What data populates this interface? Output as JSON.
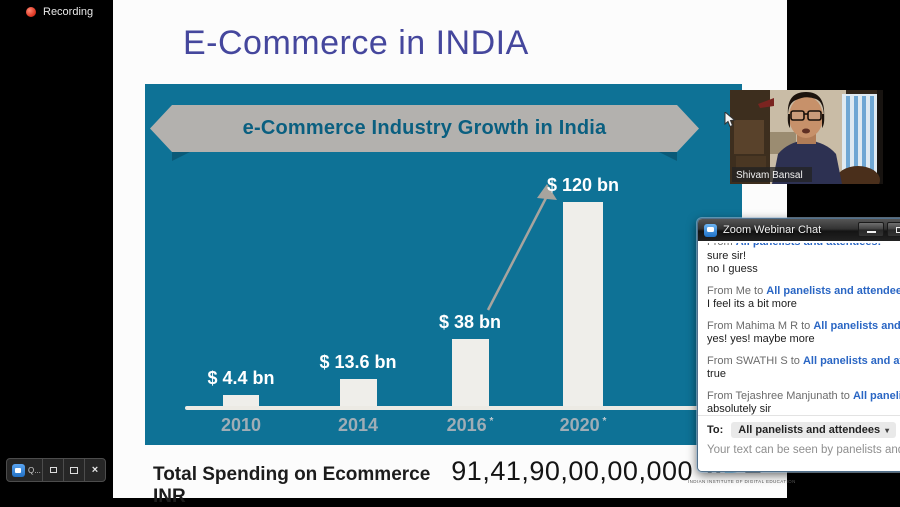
{
  "screen": {
    "recording_label": "Recording"
  },
  "slide": {
    "title": "E-Commerce in INDIA",
    "footer_label": "Total Spending on Ecommerce INR",
    "footer_value": "91,41,90,00,00,000",
    "logo_text_left": "II",
    "logo_text_blue": "D",
    "logo_text_right": "E",
    "logo_tagline": "INDIAN INSTITUTE OF DIGITAL EDUCATION"
  },
  "chart_data": {
    "type": "bar",
    "title": "e-Commerce Industry Growth in India",
    "categories": [
      "2010",
      "2014",
      "2016",
      "2020"
    ],
    "category_asterisk": [
      false,
      false,
      true,
      true
    ],
    "values": [
      4.4,
      13.6,
      38,
      120
    ],
    "value_labels": [
      "$ 4.4 bn",
      "$ 13.6 bn",
      "$ 38 bn",
      "$ 120 bn"
    ],
    "unit": "USD billion",
    "ylim": [
      0,
      130
    ],
    "legend": "none",
    "grid": false,
    "annotation": "gray arrow from 2016 bar up to the $ 120 bn label",
    "colors": {
      "panel_bg": "#0e7296",
      "bar": "#efeeea",
      "ribbon": "#b3b1ae",
      "ribbon_fold": "#0a5a78",
      "ribbon_text": "#0a5f80",
      "axis": "#eceae4",
      "year_label": "#9fadb6",
      "value_label": "#ffffff",
      "arrow": "#a7a49e",
      "title_purple": "#45479d"
    }
  },
  "webcam": {
    "name": "Shivam Bansal"
  },
  "chat": {
    "title": "Zoom Webinar Chat",
    "messages": [
      {
        "clipped": true,
        "from": "From ",
        "to": "All panelists and attendees:",
        "body": [
          "sure sir!",
          "no I guess"
        ]
      },
      {
        "clipped": false,
        "from": "From Me to ",
        "to": "All panelists and attendees:",
        "body": [
          "I feel its a bit more"
        ]
      },
      {
        "clipped": false,
        "from": "From Mahima M R to ",
        "to": "All panelists and attendees:",
        "body": [
          "yes! yes! maybe more"
        ]
      },
      {
        "clipped": false,
        "from": "From SWATHI S to ",
        "to": "All panelists and attendees:",
        "body": [
          "true"
        ]
      },
      {
        "clipped": false,
        "from": "From Tejashree Manjunath to ",
        "to": "All panelists and attendees:",
        "body": [
          "absolutely sir"
        ]
      }
    ],
    "to_label": "To:",
    "to_value": "All panelists and attendees",
    "to_caret": "▾",
    "input_placeholder": "Your text can be seen by panelists and other attendees"
  }
}
